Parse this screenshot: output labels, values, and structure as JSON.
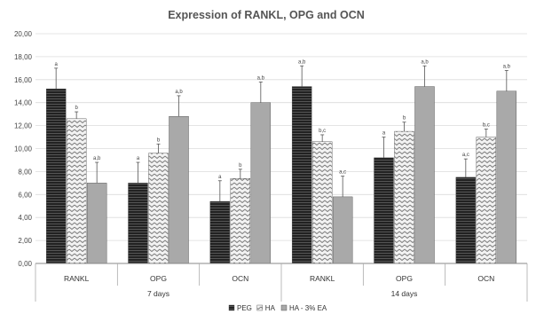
{
  "chart_data": {
    "type": "bar",
    "title": "Expression of RANKL, OPG and OCN",
    "xlabel": "",
    "ylabel": "",
    "ylim": [
      0,
      20
    ],
    "yticks": [
      "0,00",
      "2,00",
      "4,00",
      "6,00",
      "8,00",
      "10,00",
      "12,00",
      "14,00",
      "16,00",
      "18,00",
      "20,00"
    ],
    "groups": [
      "7 days",
      "14 days"
    ],
    "categories": [
      "RANKL",
      "OPG",
      "OCN",
      "RANKL",
      "OPG",
      "OCN"
    ],
    "category_group": [
      0,
      0,
      0,
      1,
      1,
      1
    ],
    "series": [
      {
        "name": "PEG",
        "color": "#2e2e2e",
        "pattern": "dark-horizontal-lines",
        "values": [
          15.2,
          7.0,
          5.4,
          15.4,
          9.2,
          7.5
        ],
        "errors": [
          1.8,
          1.8,
          1.8,
          1.8,
          1.8,
          1.6
        ],
        "labels": [
          "a",
          "a",
          "a",
          "a,b",
          "a",
          "a,c"
        ]
      },
      {
        "name": "HA",
        "color": "#d6d6d6",
        "pattern": "zigzag",
        "values": [
          12.6,
          9.6,
          7.4,
          10.6,
          11.5,
          11.0
        ],
        "errors": [
          0.6,
          0.8,
          0.8,
          0.6,
          0.8,
          0.7
        ],
        "labels": [
          "b",
          "b",
          "b",
          "b,c",
          "b",
          "b,c"
        ]
      },
      {
        "name": "HA - 3% EA",
        "color": "#a9a9a9",
        "pattern": "solid",
        "values": [
          7.0,
          12.8,
          14.0,
          5.8,
          15.4,
          15.0
        ],
        "errors": [
          1.8,
          1.8,
          1.8,
          1.8,
          1.8,
          1.8
        ],
        "labels": [
          "a,b",
          "a,b",
          "a,b",
          "a,c",
          "a,b",
          "a,b"
        ]
      }
    ],
    "grid": true,
    "legend_position": "bottom"
  }
}
